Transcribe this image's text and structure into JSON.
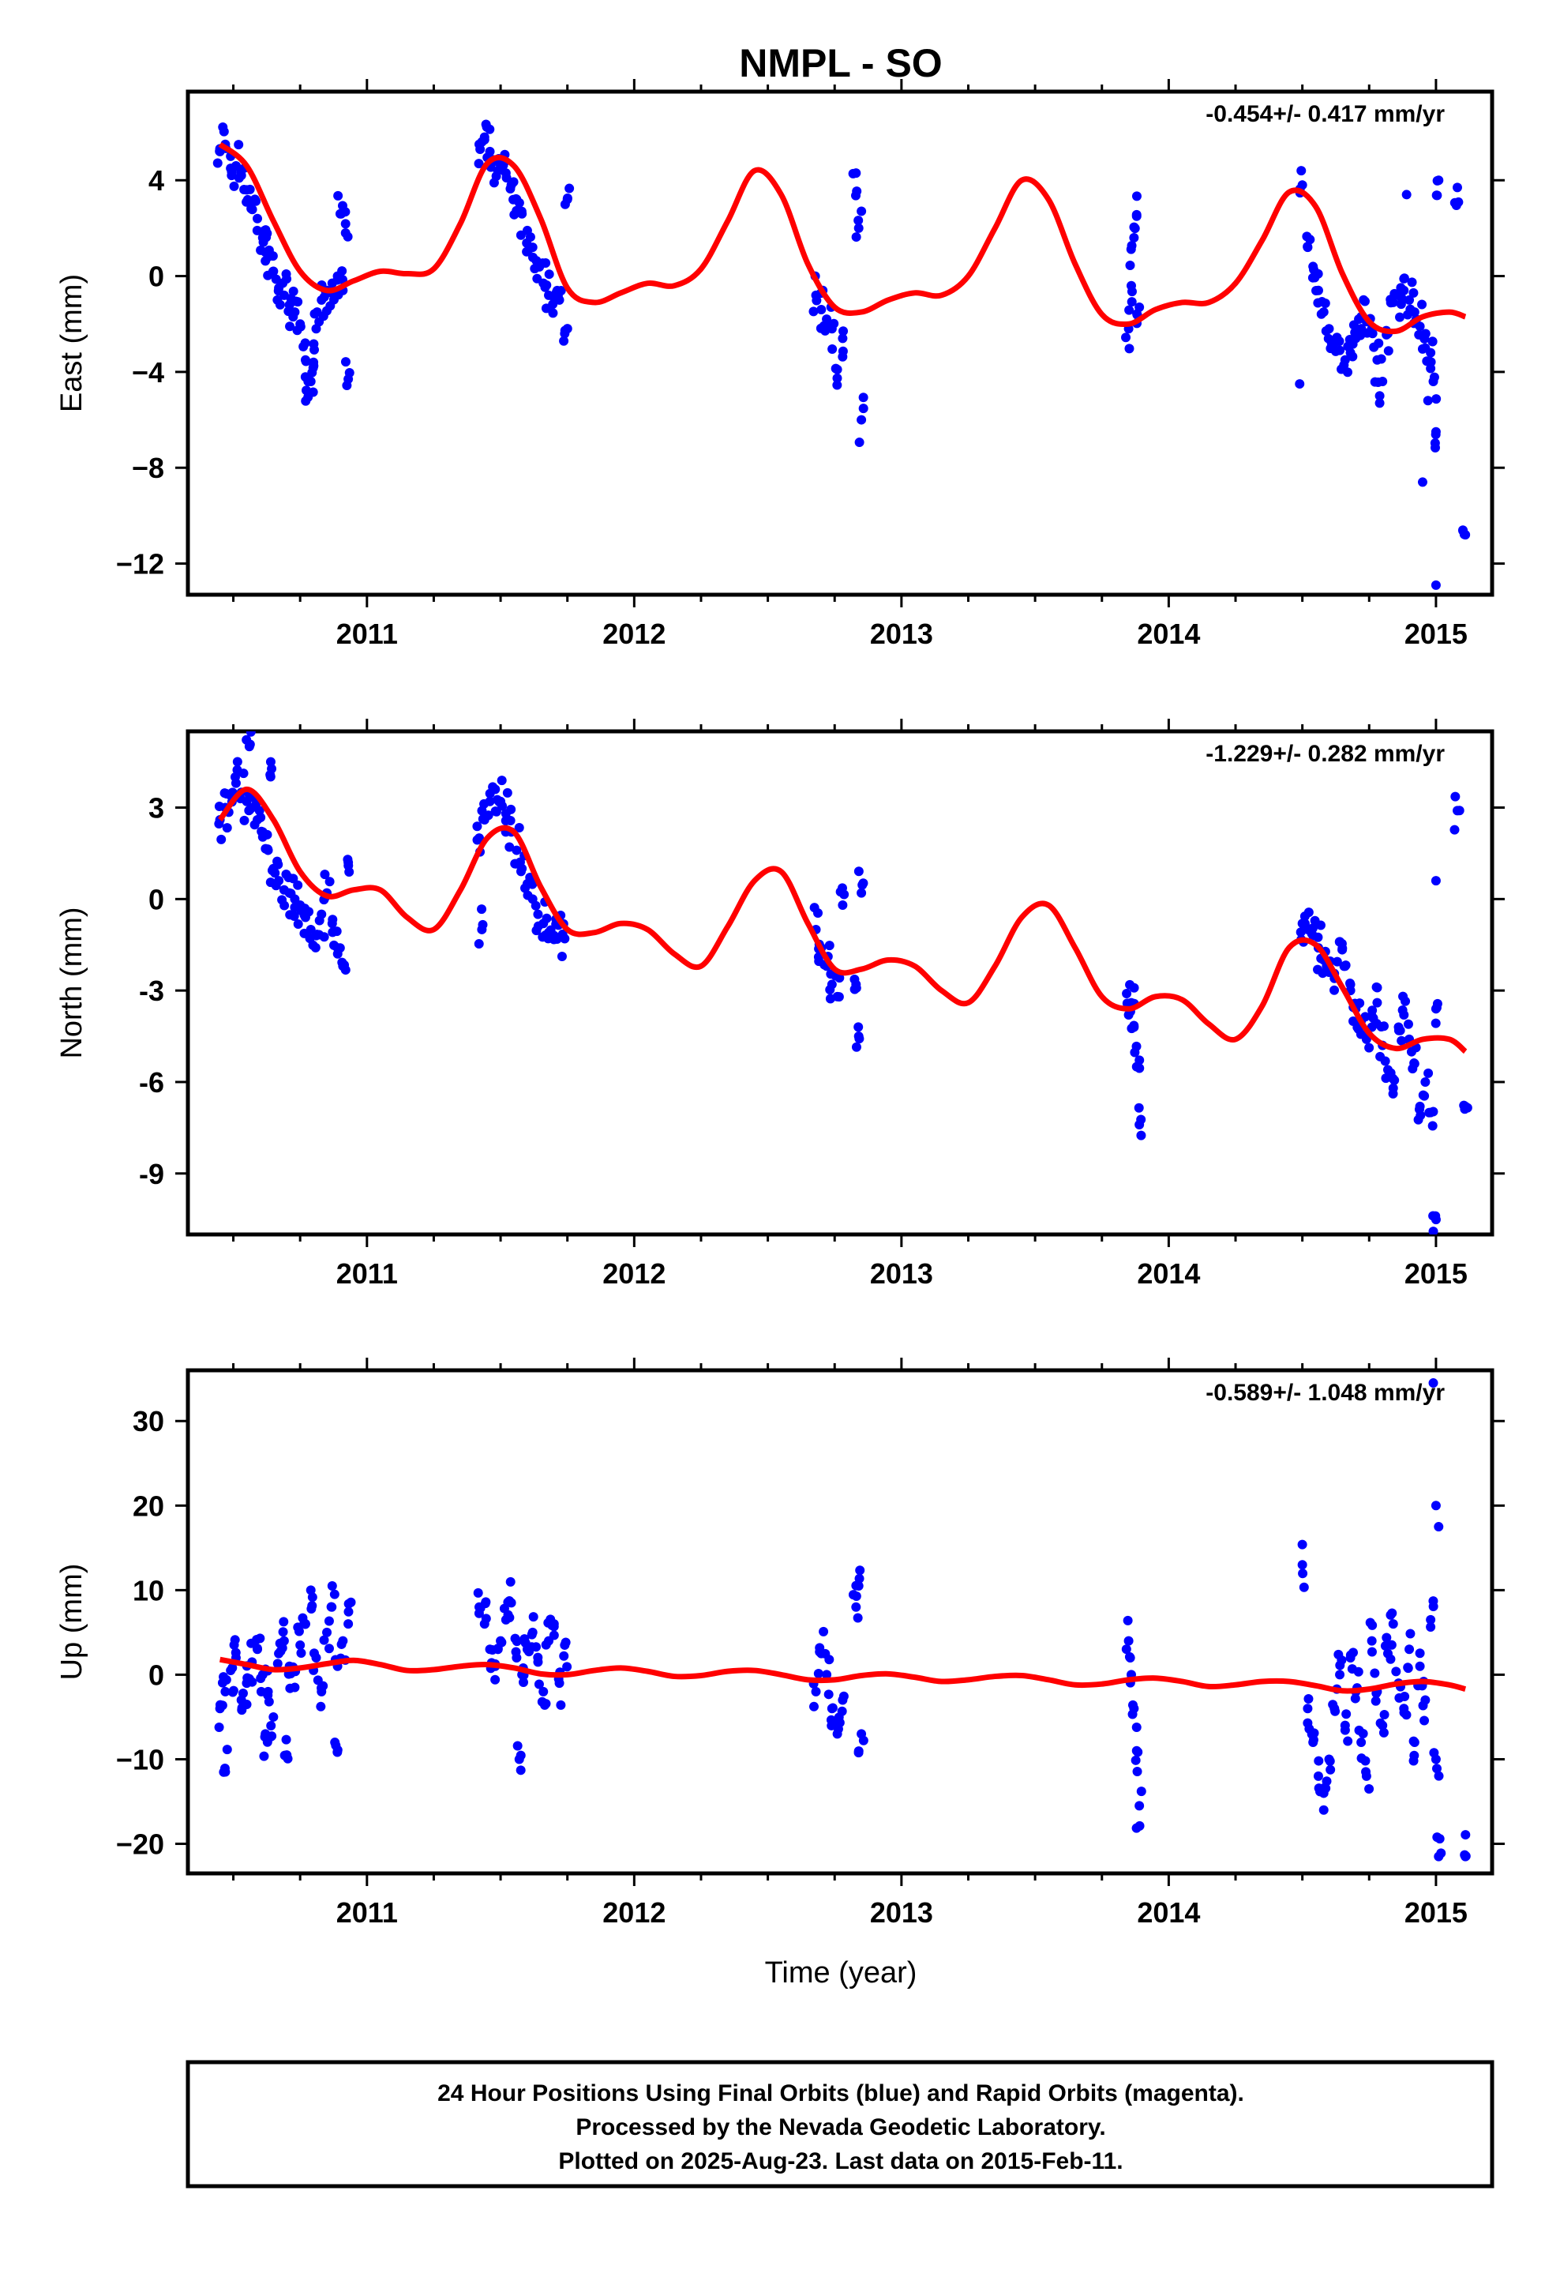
{
  "title": "NMPL - SO",
  "xlabel": "Time (year)",
  "colors": {
    "points": "#0000ff",
    "model": "#ff0000",
    "frame": "#000000"
  },
  "footer": {
    "line1": "24 Hour Positions Using Final Orbits (blue) and Rapid Orbits (magenta).",
    "line2": "Processed by the Nevada Geodetic Laboratory.",
    "line3": "Plotted on 2025-Aug-23. Last data on 2015-Feb-11."
  },
  "chart_data": [
    {
      "type": "scatter",
      "ylabel": "East (mm)",
      "rate_label": "-0.454+/- 0.417 mm/yr",
      "xlim": [
        2010.33,
        2015.21
      ],
      "ylim": [
        -13.3,
        7.7
      ],
      "xticks": [
        "2011",
        "2012",
        "2013",
        "2014",
        "2015"
      ],
      "yticks": [
        "4",
        "0",
        "−4",
        "−8",
        "−12"
      ],
      "ytick_values": [
        4,
        0,
        -4,
        -8,
        -12
      ],
      "series": [
        {
          "kind": "observations",
          "x": [
            2010.45,
            2010.47,
            2010.49,
            2010.51,
            2010.53,
            2010.55,
            2010.57,
            2010.59,
            2010.61,
            2010.63,
            2010.65,
            2010.67,
            2010.69,
            2010.71,
            2010.73,
            2010.75,
            2010.77,
            2010.79,
            2010.81,
            2010.83,
            2010.85,
            2010.87,
            2010.89,
            2010.91,
            2010.93,
            2010.78,
            2010.8,
            2010.9,
            2010.92,
            2010.62,
            2011.42,
            2011.44,
            2011.46,
            2011.48,
            2011.5,
            2011.52,
            2011.54,
            2011.56,
            2011.58,
            2011.6,
            2011.62,
            2011.64,
            2011.66,
            2011.68,
            2011.7,
            2011.72,
            2011.74,
            2011.75,
            2012.68,
            2012.7,
            2012.72,
            2012.74,
            2012.76,
            2012.78,
            2012.83,
            2012.84,
            2012.85,
            2013.85,
            2013.86,
            2013.87,
            2013.88,
            2013.89,
            2014.5,
            2014.52,
            2014.54,
            2014.56,
            2014.58,
            2014.6,
            2014.62,
            2014.64,
            2014.66,
            2014.68,
            2014.7,
            2014.72,
            2014.74,
            2014.76,
            2014.78,
            2014.8,
            2014.82,
            2014.84,
            2014.86,
            2014.88,
            2014.9,
            2014.92,
            2014.94,
            2014.96,
            2014.98,
            2014.99,
            2015.0,
            2015.01,
            2015.08,
            2015.11
          ],
          "y": [
            5.2,
            5.5,
            5.0,
            4.6,
            4.2,
            3.6,
            3.1,
            2.4,
            1.6,
            0.8,
            0.2,
            -0.5,
            -0.8,
            -1.2,
            -1.5,
            -2.0,
            -3.5,
            -4.4,
            -2.2,
            -1.0,
            -0.6,
            -0.3,
            0.0,
            -0.6,
            -4.3,
            -4.4,
            -3.6,
            2.6,
            1.8,
            1.0,
            5.5,
            5.8,
            5.2,
            4.8,
            4.6,
            4.3,
            3.8,
            3.2,
            2.6,
            1.9,
            1.2,
            0.4,
            -0.3,
            -0.8,
            -0.9,
            -1.0,
            -2.4,
            3.2,
            -0.8,
            -1.4,
            -1.8,
            -2.2,
            -3.9,
            -2.6,
            4.3,
            2.0,
            -6.0,
            -2.2,
            -0.4,
            1.6,
            2.5,
            -1.3,
            3.8,
            1.2,
            0.4,
            -0.6,
            -1.5,
            -2.2,
            -2.8,
            -3.1,
            -3.5,
            -3.2,
            -2.6,
            -1.7,
            -1.9,
            -2.2,
            -3.5,
            -4.4,
            -2.4,
            -1.1,
            -0.8,
            -0.6,
            -1.0,
            -1.5,
            -2.1,
            -3.0,
            -3.2,
            -4.4,
            -6.5,
            4.0,
            3.7,
            -10.8
          ],
          "extra_x": [
            2014.49,
            2014.95,
            2014.97,
            2015.0,
            2014.89
          ],
          "extra_y": [
            -4.5,
            -8.6,
            -5.2,
            -12.9,
            3.4
          ]
        },
        {
          "kind": "model",
          "x": [
            2010.45,
            2010.55,
            2010.65,
            2010.75,
            2010.85,
            2010.95,
            2011.05,
            2011.15,
            2011.25,
            2011.35,
            2011.45,
            2011.55,
            2011.65,
            2011.75,
            2011.85,
            2011.95,
            2012.05,
            2012.15,
            2012.25,
            2012.35,
            2012.45,
            2012.55,
            2012.65,
            2012.75,
            2012.85,
            2012.95,
            2013.05,
            2013.15,
            2013.25,
            2013.35,
            2013.45,
            2013.55,
            2013.65,
            2013.75,
            2013.85,
            2013.95,
            2014.05,
            2014.15,
            2014.25,
            2014.35,
            2014.45,
            2014.55,
            2014.65,
            2014.75,
            2014.85,
            2014.95,
            2015.05,
            2015.11
          ],
          "y": [
            5.5,
            4.6,
            2.3,
            0.2,
            -0.6,
            -0.2,
            0.2,
            0.1,
            0.3,
            2.2,
            4.7,
            4.6,
            2.4,
            -0.5,
            -1.1,
            -0.7,
            -0.3,
            -0.4,
            0.3,
            2.3,
            4.4,
            3.4,
            0.5,
            -1.3,
            -1.5,
            -1.0,
            -0.7,
            -0.8,
            0.0,
            2.0,
            4.0,
            3.2,
            0.5,
            -1.6,
            -2.0,
            -1.4,
            -1.1,
            -1.1,
            -0.3,
            1.5,
            3.5,
            2.9,
            0.1,
            -1.9,
            -2.3,
            -1.7,
            -1.5,
            -1.7
          ]
        }
      ]
    },
    {
      "type": "scatter",
      "ylabel": "North (mm)",
      "rate_label": "-1.229+/- 0.282 mm/yr",
      "xlim": [
        2010.33,
        2015.21
      ],
      "ylim": [
        -11.0,
        5.5
      ],
      "xticks": [
        "2011",
        "2012",
        "2013",
        "2014",
        "2015"
      ],
      "yticks": [
        "3",
        "0",
        "-3",
        "-6",
        "-9"
      ],
      "ytick_values": [
        3,
        0,
        -3,
        -6,
        -9
      ],
      "series": [
        {
          "kind": "observations",
          "x": [
            2010.45,
            2010.47,
            2010.49,
            2010.51,
            2010.53,
            2010.55,
            2010.57,
            2010.59,
            2010.61,
            2010.63,
            2010.65,
            2010.67,
            2010.69,
            2010.71,
            2010.73,
            2010.75,
            2010.77,
            2010.79,
            2010.81,
            2010.83,
            2010.85,
            2010.87,
            2010.89,
            2010.91,
            2010.93,
            2010.56,
            2010.64,
            2011.42,
            2011.44,
            2011.46,
            2011.48,
            2011.5,
            2011.52,
            2011.54,
            2011.56,
            2011.58,
            2011.6,
            2011.62,
            2011.64,
            2011.66,
            2011.68,
            2011.7,
            2011.72,
            2011.74,
            2011.43,
            2012.68,
            2012.7,
            2012.72,
            2012.74,
            2012.76,
            2012.78,
            2012.83,
            2012.84,
            2012.85,
            2013.85,
            2013.86,
            2013.87,
            2013.88,
            2013.89,
            2014.5,
            2014.52,
            2014.54,
            2014.56,
            2014.58,
            2014.6,
            2014.62,
            2014.64,
            2014.66,
            2014.68,
            2014.7,
            2014.72,
            2014.74,
            2014.76,
            2014.78,
            2014.8,
            2014.82,
            2014.84,
            2014.86,
            2014.88,
            2014.9,
            2014.92,
            2014.94,
            2014.96,
            2014.98,
            2015.0,
            2015.08,
            2015.11,
            2014.99
          ],
          "y": [
            2.6,
            3.0,
            3.4,
            3.8,
            3.5,
            3.2,
            3.0,
            2.6,
            2.2,
            1.6,
            1.0,
            0.6,
            0.3,
            0.2,
            0.0,
            -0.2,
            -0.6,
            -1.0,
            -1.2,
            -0.5,
            0.2,
            -0.8,
            -1.6,
            -2.2,
            1.2,
            5.0,
            4.5,
            2.0,
            2.6,
            3.2,
            3.6,
            3.2,
            2.8,
            2.2,
            1.6,
            1.0,
            0.5,
            0.0,
            -0.5,
            -0.8,
            -1.1,
            -1.2,
            -0.8,
            -1.3,
            -1.0,
            -1.0,
            -1.6,
            -2.2,
            -2.8,
            -3.2,
            -0.2,
            -2.8,
            -4.5,
            0.2,
            -3.8,
            -3.4,
            -4.2,
            -5.5,
            -7.4,
            -0.8,
            -1.0,
            -1.2,
            -1.6,
            -2.0,
            -2.4,
            -2.6,
            -1.4,
            -2.2,
            -3.0,
            -3.6,
            -4.0,
            -4.6,
            -4.2,
            -3.4,
            -4.8,
            -5.6,
            -6.2,
            -4.2,
            -3.8,
            -4.6,
            -5.4,
            -6.8,
            -6.0,
            -7.0,
            -3.6,
            2.9,
            -6.8,
            -10.9
          ],
          "extra_x": [
            2015.0
          ],
          "extra_y": [
            0.6
          ]
        },
        {
          "kind": "model",
          "x": [
            2010.45,
            2010.55,
            2010.65,
            2010.75,
            2010.85,
            2010.95,
            2011.05,
            2011.15,
            2011.25,
            2011.35,
            2011.45,
            2011.55,
            2011.65,
            2011.75,
            2011.85,
            2011.95,
            2012.05,
            2012.15,
            2012.25,
            2012.35,
            2012.45,
            2012.55,
            2012.65,
            2012.75,
            2012.85,
            2012.95,
            2013.05,
            2013.15,
            2013.25,
            2013.35,
            2013.45,
            2013.55,
            2013.65,
            2013.75,
            2013.85,
            2013.95,
            2014.05,
            2014.15,
            2014.25,
            2014.35,
            2014.45,
            2014.55,
            2014.65,
            2014.75,
            2014.85,
            2014.95,
            2015.05,
            2015.11
          ],
          "y": [
            2.6,
            3.6,
            2.6,
            0.9,
            0.1,
            0.3,
            0.3,
            -0.6,
            -1.0,
            0.3,
            2.0,
            2.2,
            0.4,
            -1.0,
            -1.1,
            -0.8,
            -1.0,
            -1.8,
            -2.2,
            -0.9,
            0.6,
            0.9,
            -0.8,
            -2.3,
            -2.3,
            -2.0,
            -2.2,
            -3.0,
            -3.4,
            -2.2,
            -0.6,
            -0.2,
            -1.6,
            -3.2,
            -3.6,
            -3.2,
            -3.3,
            -4.1,
            -4.6,
            -3.5,
            -1.6,
            -1.5,
            -2.9,
            -4.4,
            -4.9,
            -4.6,
            -4.6,
            -5.0
          ]
        }
      ]
    },
    {
      "type": "scatter",
      "ylabel": "Up (mm)",
      "rate_label": "-0.589+/- 1.048 mm/yr",
      "xlim": [
        2010.33,
        2015.21
      ],
      "ylim": [
        -23.5,
        36.0
      ],
      "xticks": [
        "2011",
        "2012",
        "2013",
        "2014",
        "2015"
      ],
      "yticks": [
        "30",
        "20",
        "10",
        "0",
        "−10",
        "−20"
      ],
      "ytick_values": [
        30,
        20,
        10,
        0,
        -10,
        -20
      ],
      "series": [
        {
          "kind": "observations",
          "x": [
            2010.45,
            2010.47,
            2010.49,
            2010.51,
            2010.53,
            2010.55,
            2010.57,
            2010.59,
            2010.61,
            2010.63,
            2010.65,
            2010.67,
            2010.69,
            2010.71,
            2010.73,
            2010.75,
            2010.77,
            2010.79,
            2010.81,
            2010.83,
            2010.85,
            2010.87,
            2010.89,
            2010.91,
            2010.93,
            2010.47,
            2010.62,
            2010.7,
            2010.88,
            2011.42,
            2011.44,
            2011.46,
            2011.48,
            2011.5,
            2011.52,
            2011.54,
            2011.56,
            2011.58,
            2011.6,
            2011.62,
            2011.64,
            2011.66,
            2011.68,
            2011.7,
            2011.72,
            2011.74,
            2011.57,
            2012.68,
            2012.7,
            2012.72,
            2012.74,
            2012.76,
            2012.78,
            2012.83,
            2012.84,
            2012.85,
            2013.85,
            2013.86,
            2013.87,
            2013.88,
            2013.89,
            2014.5,
            2014.52,
            2014.54,
            2014.56,
            2014.58,
            2014.6,
            2014.62,
            2014.64,
            2014.66,
            2014.68,
            2014.7,
            2014.72,
            2014.74,
            2014.76,
            2014.78,
            2014.8,
            2014.82,
            2014.84,
            2014.86,
            2014.88,
            2014.9,
            2014.92,
            2014.94,
            2014.96,
            2014.98,
            2015.0,
            2015.01,
            2015.11
          ],
          "y": [
            -4.0,
            -2.0,
            0.5,
            2.0,
            -3.0,
            -1.0,
            1.5,
            3.0,
            0.0,
            -2.0,
            -5.0,
            2.5,
            4.0,
            1.0,
            -1.5,
            3.5,
            6.0,
            10.0,
            2.0,
            -2.0,
            5.0,
            10.5,
            1.0,
            4.0,
            6.0,
            -11.5,
            -7.0,
            -9.5,
            -8.0,
            8.0,
            6.0,
            3.0,
            1.0,
            4.0,
            6.5,
            8.5,
            2.0,
            0.0,
            3.0,
            5.0,
            1.5,
            -2.0,
            4.0,
            6.0,
            -1.0,
            3.5,
            -10.0,
            -2.0,
            2.5,
            0.0,
            -4.0,
            -7.0,
            -3.0,
            8.0,
            10.5,
            -7.0,
            4.0,
            0.0,
            -4.0,
            -9.0,
            -15.5,
            13.0,
            -4.0,
            -8.0,
            -12.0,
            -16.0,
            -10.0,
            -4.0,
            0.0,
            -6.0,
            2.0,
            -2.0,
            -8.0,
            -12.0,
            4.0,
            -2.0,
            -6.0,
            2.5,
            6.0,
            -1.0,
            -4.0,
            3.0,
            -8.0,
            1.0,
            -3.0,
            6.5,
            -10.0,
            -21.5,
            -21.5
          ],
          "extra_x": [
            2014.99,
            2015.0,
            2015.01
          ],
          "extra_y": [
            34.5,
            20.0,
            17.5
          ]
        },
        {
          "kind": "model",
          "x": [
            2010.45,
            2010.55,
            2010.65,
            2010.75,
            2010.85,
            2010.95,
            2011.05,
            2011.15,
            2011.25,
            2011.35,
            2011.45,
            2011.55,
            2011.65,
            2011.75,
            2011.85,
            2011.95,
            2012.05,
            2012.15,
            2012.25,
            2012.35,
            2012.45,
            2012.55,
            2012.65,
            2012.75,
            2012.85,
            2012.95,
            2013.05,
            2013.15,
            2013.25,
            2013.35,
            2013.45,
            2013.55,
            2013.65,
            2013.75,
            2013.85,
            2013.95,
            2014.05,
            2014.15,
            2014.25,
            2014.35,
            2014.45,
            2014.55,
            2014.65,
            2014.75,
            2014.85,
            2014.95,
            2015.05,
            2015.11
          ],
          "y": [
            1.8,
            1.2,
            0.6,
            0.8,
            1.3,
            1.7,
            1.2,
            0.5,
            0.6,
            1.0,
            1.2,
            0.8,
            0.1,
            0.0,
            0.5,
            0.8,
            0.4,
            -0.2,
            -0.1,
            0.4,
            0.5,
            0.0,
            -0.6,
            -0.6,
            -0.1,
            0.1,
            -0.3,
            -0.8,
            -0.6,
            -0.2,
            -0.1,
            -0.6,
            -1.2,
            -1.1,
            -0.6,
            -0.4,
            -0.8,
            -1.4,
            -1.2,
            -0.8,
            -0.8,
            -1.3,
            -1.9,
            -1.7,
            -1.1,
            -0.8,
            -1.2,
            -1.7
          ]
        }
      ]
    }
  ]
}
